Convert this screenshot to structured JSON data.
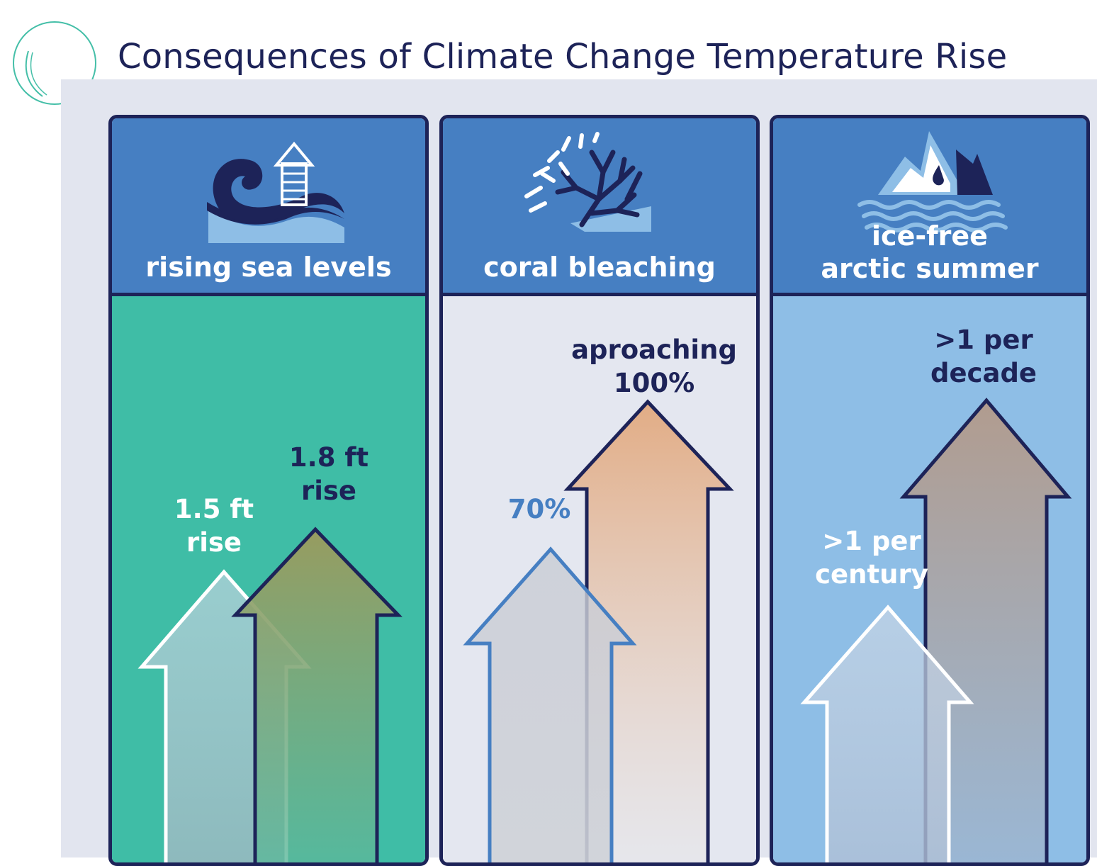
{
  "title": "Consequences of Climate Change Temperature Rise",
  "colors": {
    "navy": "#1d2358",
    "header_blue": "#467fc2",
    "teal": "#3fbda6",
    "pale_grey": "#e4e7f0",
    "light_blue": "#8ebee6",
    "backdrop": "#e2e5ef"
  },
  "panels": [
    {
      "label": "rising sea levels",
      "icon": "wave-rising-icon",
      "lower_value": [
        "1.5 ft",
        "rise"
      ],
      "higher_value": [
        "1.8 ft",
        "rise"
      ]
    },
    {
      "label": "coral bleaching",
      "icon": "coral-icon",
      "lower_value": [
        "70%"
      ],
      "higher_value": [
        "aproaching",
        "100%"
      ]
    },
    {
      "label_lines": [
        "ice-free",
        "arctic summer"
      ],
      "icon": "melting-iceberg-icon",
      "lower_value": [
        ">1 per",
        "century"
      ],
      "higher_value": [
        ">1 per",
        "decade"
      ]
    }
  ]
}
